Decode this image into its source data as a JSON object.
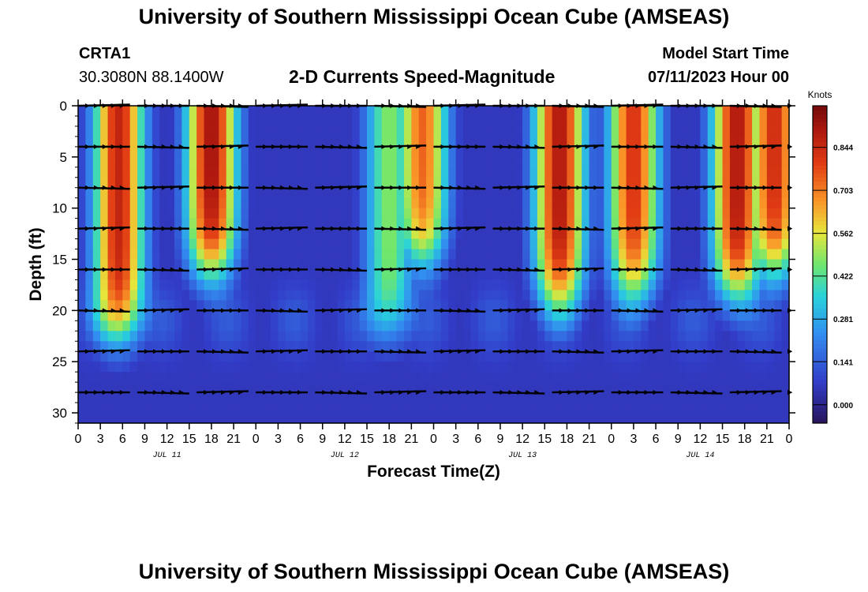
{
  "header": {
    "title": "University of Southern Mississippi Ocean Cube (AMSEAS)",
    "station_id": "CRTA1",
    "coords": "30.3080N  88.1400W",
    "subtitle": "2-D Currents Speed-Magnitude",
    "model_label": "Model Start Time",
    "model_time": "07/11/2023 Hour 00",
    "footer_title": "University of Southern Mississippi Ocean Cube (AMSEAS)"
  },
  "chart_data": {
    "type": "heatmap",
    "title": "2-D Currents Speed-Magnitude",
    "xlabel": "Forecast Time(Z)",
    "ylabel": "Depth (ft)",
    "x_range_hours": [
      0,
      96
    ],
    "y_range_ft": [
      0,
      31
    ],
    "y_ticks": [
      0,
      5,
      10,
      15,
      20,
      25,
      30
    ],
    "x_tick_labels": [
      "0",
      "3",
      "6",
      "9",
      "12",
      "15",
      "18",
      "21",
      "0",
      "3",
      "6",
      "9",
      "12",
      "15",
      "18",
      "21",
      "0",
      "3",
      "6",
      "9",
      "12",
      "15",
      "18",
      "21",
      "0",
      "3",
      "6",
      "9",
      "12",
      "15",
      "18",
      "21",
      "0"
    ],
    "day_labels": [
      "JUL 11",
      "JUL 12",
      "JUL 13",
      "JUL 14"
    ],
    "colorbar": {
      "label": "Knots",
      "ticks": [
        "0.000",
        "0.141",
        "0.281",
        "0.422",
        "0.562",
        "0.703",
        "0.844"
      ],
      "tick_values": [
        0.0,
        0.141,
        0.281,
        0.422,
        0.562,
        0.703,
        0.844
      ],
      "range": [
        -0.06,
        0.98
      ]
    },
    "vector_depths_ft": [
      0,
      4,
      8,
      12,
      16,
      20,
      24,
      28
    ],
    "speed_peaks": [
      {
        "hour": 5.5,
        "speed": 0.86,
        "max_depth_ft": 22
      },
      {
        "hour": 18,
        "speed": 0.92,
        "max_depth_ft": 16
      },
      {
        "hour": 42,
        "speed": 0.48,
        "max_depth_ft": 22
      },
      {
        "hour": 46.5,
        "speed": 0.74,
        "max_depth_ft": 15
      },
      {
        "hour": 65,
        "speed": 0.9,
        "max_depth_ft": 19
      },
      {
        "hour": 75,
        "speed": 0.82,
        "max_depth_ft": 18
      },
      {
        "hour": 89,
        "speed": 0.9,
        "max_depth_ft": 18
      },
      {
        "hour": 94,
        "speed": 0.84,
        "max_depth_ft": 16
      }
    ]
  }
}
